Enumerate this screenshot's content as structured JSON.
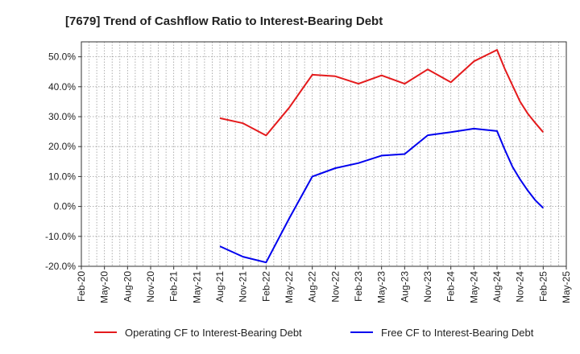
{
  "chart_data": {
    "type": "line",
    "title": "[7679]  Trend of Cashflow Ratio to Interest-Bearing Debt",
    "xlabel": "",
    "ylabel": "",
    "ylim": [
      -20,
      55
    ],
    "yticks": [
      -20,
      -10,
      0,
      10,
      20,
      30,
      40,
      50
    ],
    "ytick_labels": [
      "-20.0%",
      "-10.0%",
      "0.0%",
      "10.0%",
      "20.0%",
      "30.0%",
      "40.0%",
      "50.0%"
    ],
    "x_tick_labels": [
      "Feb-20",
      "May-20",
      "Aug-20",
      "Nov-20",
      "Feb-21",
      "May-21",
      "Aug-21",
      "Nov-21",
      "Feb-22",
      "May-22",
      "Aug-22",
      "Nov-22",
      "Feb-23",
      "May-23",
      "Aug-23",
      "Nov-23",
      "Feb-24",
      "May-24",
      "Aug-24",
      "Nov-24",
      "Feb-25",
      "May-25"
    ],
    "grid": true,
    "legend_position": "bottom",
    "series": [
      {
        "name": "Operating CF to Interest-Bearing Debt",
        "color": "#e41a1c",
        "x": [
          "Aug-21",
          "Nov-21",
          "Feb-22",
          "May-22",
          "Aug-22",
          "Nov-22",
          "Feb-23",
          "May-23",
          "Aug-23",
          "Nov-23",
          "Feb-24",
          "May-24",
          "Aug-24",
          "Sep-24",
          "Oct-24",
          "Nov-24",
          "Dec-24",
          "Jan-25",
          "Feb-25"
        ],
        "values": [
          29.5,
          27.8,
          23.7,
          33.0,
          44.0,
          43.5,
          41.0,
          43.8,
          41.0,
          45.8,
          41.5,
          48.5,
          52.3,
          46.0,
          40.5,
          35.0,
          31.0,
          27.8,
          24.8
        ]
      },
      {
        "name": "Free CF to Interest-Bearing Debt",
        "color": "#0000ee",
        "x": [
          "Aug-21",
          "Nov-21",
          "Feb-22",
          "May-22",
          "Aug-22",
          "Nov-22",
          "Feb-23",
          "May-23",
          "Aug-23",
          "Nov-23",
          "Feb-24",
          "May-24",
          "Aug-24",
          "Sep-24",
          "Oct-24",
          "Nov-24",
          "Dec-24",
          "Jan-25",
          "Feb-25"
        ],
        "values": [
          -13.3,
          -16.8,
          -18.7,
          -4.0,
          10.0,
          12.8,
          14.5,
          17.0,
          17.5,
          23.8,
          24.8,
          26.0,
          25.2,
          19.0,
          13.3,
          9.0,
          5.3,
          2.0,
          -0.5
        ]
      }
    ]
  }
}
